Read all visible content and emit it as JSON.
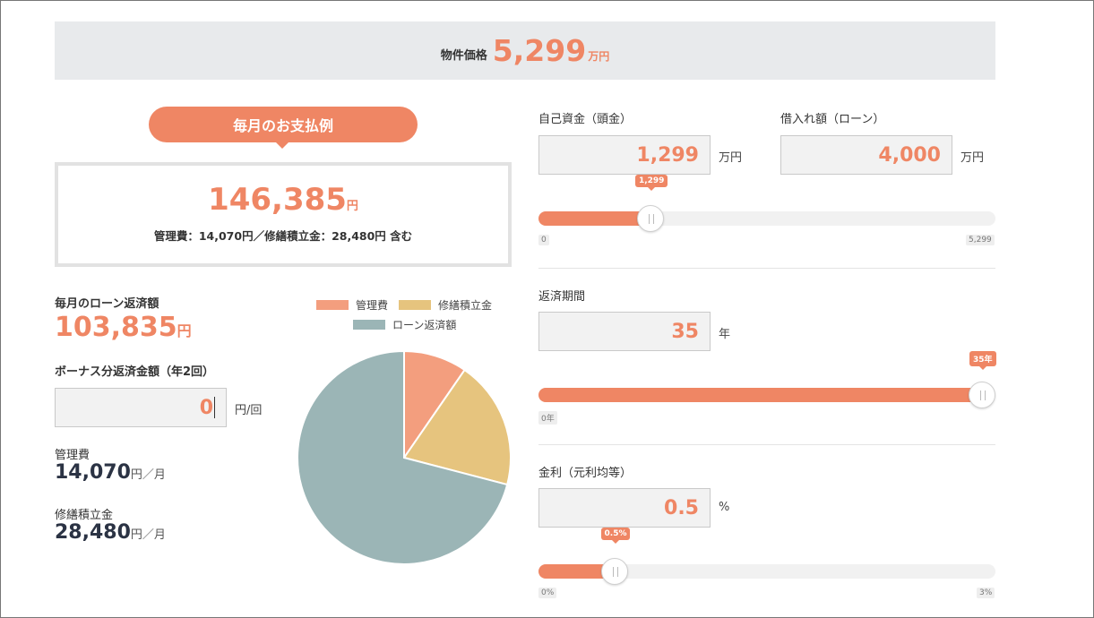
{
  "banner": {
    "label": "物件価格",
    "value": "5,299",
    "unit": "万円"
  },
  "monthly": {
    "pill": "毎月のお支払例",
    "total": "146,385",
    "total_unit": "円",
    "note": "管理費：14,070円／修繕積立金：28,480円 含む"
  },
  "loan": {
    "label": "毎月のローン返済額",
    "value": "103,835",
    "unit": "円"
  },
  "bonus": {
    "label": "ボーナス分返済金額（年2回）",
    "value": "0",
    "unit": "円/回"
  },
  "management": {
    "label": "管理費",
    "value": "14,070",
    "unit": "円／月"
  },
  "repair": {
    "label": "修繕積立金",
    "value": "28,480",
    "unit": "円／月"
  },
  "legend": [
    {
      "label": "管理費",
      "color": "#f39e7e"
    },
    {
      "label": "修繕積立金",
      "color": "#e6c47e"
    },
    {
      "label": "ローン返済額",
      "color": "#9bb5b6"
    }
  ],
  "chart_data": {
    "type": "pie",
    "labels": [
      "管理費",
      "修繕積立金",
      "ローン返済額"
    ],
    "values": [
      14070,
      28480,
      103835
    ],
    "colors": [
      "#f39e7e",
      "#e6c47e",
      "#9bb5b6"
    ],
    "legend_position": "top"
  },
  "downpayment": {
    "label": "自己資金（頭金）",
    "value": "1,299",
    "unit": "万円",
    "tip": "1,299",
    "min": "0",
    "max": "5,299",
    "fraction": 0.245
  },
  "borrow": {
    "label": "借入れ額（ローン）",
    "value": "4,000",
    "unit": "万円"
  },
  "term": {
    "label": "返済期間",
    "value": "35",
    "unit": "年",
    "tip": "35年",
    "min": "0年",
    "fraction": 1.0
  },
  "rate": {
    "label": "金利（元利均等）",
    "value": "0.5",
    "unit": "%",
    "tip": "0.5%",
    "min": "0%",
    "max": "3%",
    "fraction": 0.1667
  }
}
